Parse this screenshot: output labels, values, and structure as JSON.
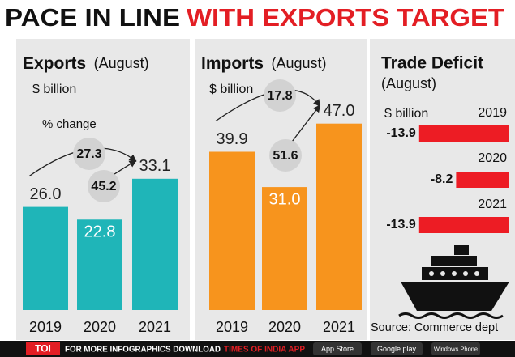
{
  "title_left": "PACE IN LINE",
  "title_right": "WITH EXPORTS TARGET",
  "chart_data": [
    {
      "type": "bar",
      "title": "Exports",
      "subtitle": "(August)",
      "unit": "$ billion",
      "categories": [
        "2019",
        "2020",
        "2021"
      ],
      "values": [
        26.0,
        22.8,
        33.1
      ],
      "value_labels": [
        "26.0",
        "22.8",
        "33.1"
      ],
      "color": "#1fb5b8",
      "change_label": "% change",
      "changes": [
        27.3,
        45.2
      ]
    },
    {
      "type": "bar",
      "title": "Imports",
      "subtitle": "(August)",
      "unit": "$ billion",
      "categories": [
        "2019",
        "2020",
        "2021"
      ],
      "values": [
        39.9,
        31.0,
        47.0
      ],
      "value_labels": [
        "39.9",
        "31.0",
        "47.0"
      ],
      "color": "#f7941d",
      "changes": [
        17.8,
        51.6
      ]
    },
    {
      "type": "hbar",
      "title": "Trade Deficit",
      "subtitle": "(August)",
      "unit": "$ billion",
      "categories": [
        "2019",
        "2020",
        "2021"
      ],
      "values": [
        -13.9,
        -8.2,
        -13.9
      ],
      "color": "#ed1c24"
    }
  ],
  "source": "Source: Commerce dept",
  "footer": {
    "brand": "TOI",
    "text": "FOR MORE INFOGRAPHICS DOWNLOAD",
    "app": "TIMES OF INDIA APP",
    "stores": [
      "App Store",
      "Google play",
      "Windows Phone"
    ]
  }
}
